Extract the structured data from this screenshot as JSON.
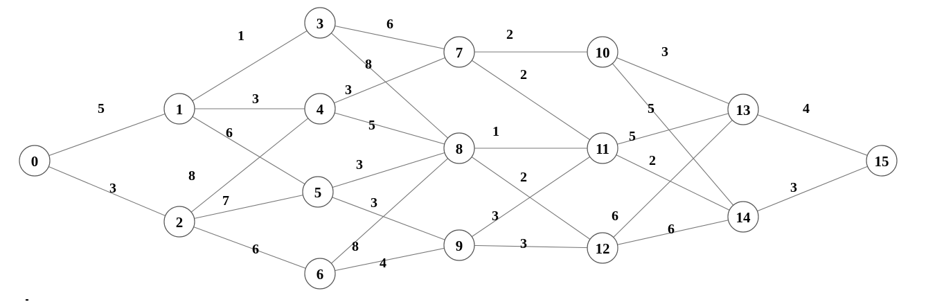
{
  "graph": {
    "nodes": [
      "0",
      "1",
      "2",
      "3",
      "4",
      "5",
      "6",
      "7",
      "8",
      "9",
      "10",
      "11",
      "12",
      "13",
      "14",
      "15"
    ],
    "edges": [
      {
        "from": "0",
        "to": "1",
        "weight": "5"
      },
      {
        "from": "0",
        "to": "2",
        "weight": "3"
      },
      {
        "from": "1",
        "to": "3",
        "weight": "1"
      },
      {
        "from": "1",
        "to": "4",
        "weight": "3"
      },
      {
        "from": "1",
        "to": "5",
        "weight": "6"
      },
      {
        "from": "2",
        "to": "4",
        "weight": "8"
      },
      {
        "from": "2",
        "to": "5",
        "weight": "7"
      },
      {
        "from": "2",
        "to": "6",
        "weight": "6"
      },
      {
        "from": "3",
        "to": "7",
        "weight": "6"
      },
      {
        "from": "3",
        "to": "8",
        "weight": "8"
      },
      {
        "from": "4",
        "to": "7",
        "weight": "3"
      },
      {
        "from": "4",
        "to": "8",
        "weight": "5"
      },
      {
        "from": "5",
        "to": "8",
        "weight": "3"
      },
      {
        "from": "5",
        "to": "9",
        "weight": "3"
      },
      {
        "from": "6",
        "to": "8",
        "weight": "8"
      },
      {
        "from": "6",
        "to": "9",
        "weight": "4"
      },
      {
        "from": "7",
        "to": "10",
        "weight": "2"
      },
      {
        "from": "7",
        "to": "11",
        "weight": "2"
      },
      {
        "from": "8",
        "to": "11",
        "weight": "1"
      },
      {
        "from": "8",
        "to": "12",
        "weight": "2"
      },
      {
        "from": "9",
        "to": "11",
        "weight": "3"
      },
      {
        "from": "9",
        "to": "12",
        "weight": "3"
      },
      {
        "from": "10",
        "to": "13",
        "weight": "3"
      },
      {
        "from": "10",
        "to": "14",
        "weight": "5"
      },
      {
        "from": "11",
        "to": "13",
        "weight": "5"
      },
      {
        "from": "11",
        "to": "14",
        "weight": "2"
      },
      {
        "from": "12",
        "to": "13",
        "weight": "6"
      },
      {
        "from": "12",
        "to": "14",
        "weight": "6"
      },
      {
        "from": "13",
        "to": "15",
        "weight": "4"
      },
      {
        "from": "14",
        "to": "15",
        "weight": "3"
      }
    ]
  },
  "colors": {
    "edge": "#777777",
    "node_stroke": "#555555",
    "text": "#000000",
    "background": "#ffffff"
  }
}
